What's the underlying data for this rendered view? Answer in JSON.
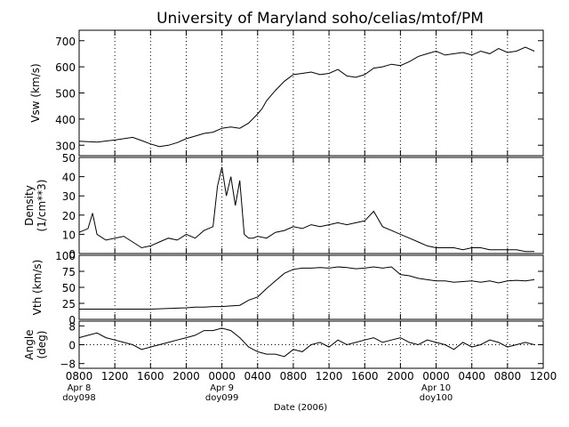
{
  "chart_data": {
    "type": "line",
    "title": "University of Maryland  soho/celias/mtof/PM",
    "xlabel": "Date (2006)",
    "x_ticks": [
      "0800",
      "1200",
      "1600",
      "2000",
      "0000",
      "0400",
      "0800",
      "1200",
      "1600",
      "2000",
      "0000",
      "0400",
      "0800",
      "1200"
    ],
    "x_range_hours": [
      0,
      52
    ],
    "date_annotations": [
      {
        "hour": 0,
        "date": "Apr 8",
        "doy": "doy098"
      },
      {
        "hour": 16,
        "date": "Apr 9",
        "doy": "doy099"
      },
      {
        "hour": 40,
        "date": "Apr 10",
        "doy": "doy100"
      }
    ],
    "grid": "dotted vertical lines every 4 hours",
    "panels": [
      {
        "id": "vsw",
        "ylabel": [
          "Vsw (km/s)"
        ],
        "ylim": [
          260,
          740
        ],
        "yticks": [
          300,
          400,
          500,
          600,
          700
        ],
        "x": [
          0,
          2,
          4,
          6,
          7,
          8,
          9,
          10,
          11,
          12,
          13,
          14,
          15,
          16,
          17,
          18,
          19,
          20,
          20.5,
          21,
          22,
          23,
          24,
          25,
          26,
          27,
          28,
          29,
          30,
          31,
          32,
          33,
          34,
          35,
          36,
          37,
          38,
          39,
          40,
          41,
          42,
          43,
          44,
          45,
          46,
          47,
          48,
          49,
          50,
          51
        ],
        "y": [
          315,
          312,
          320,
          330,
          318,
          305,
          295,
          300,
          310,
          325,
          335,
          345,
          350,
          365,
          370,
          365,
          385,
          420,
          440,
          470,
          510,
          545,
          570,
          575,
          580,
          570,
          575,
          590,
          565,
          560,
          570,
          595,
          600,
          610,
          605,
          620,
          640,
          650,
          660,
          645,
          650,
          655,
          645,
          660,
          650,
          670,
          655,
          660,
          675,
          660
        ]
      },
      {
        "id": "density",
        "ylabel": [
          "Density",
          "(1/cm**3)"
        ],
        "ylim": [
          0,
          50
        ],
        "yticks": [
          0,
          10,
          20,
          30,
          40,
          50
        ],
        "x": [
          0,
          1,
          1.5,
          2,
          3,
          4,
          5,
          6,
          7,
          8,
          9,
          10,
          11,
          12,
          13,
          14,
          15,
          15.5,
          16,
          16.5,
          17,
          17.5,
          18,
          18.5,
          19,
          19.5,
          20,
          21,
          22,
          23,
          24,
          25,
          26,
          27,
          28,
          29,
          30,
          31,
          32,
          33,
          34,
          35,
          36,
          37,
          38,
          39,
          40,
          41,
          42,
          43,
          44,
          45,
          46,
          47,
          48,
          49,
          50,
          51
        ],
        "y": [
          11,
          13,
          21,
          10,
          7,
          8,
          9,
          6,
          3,
          4,
          6,
          8,
          7,
          10,
          8,
          12,
          14,
          35,
          45,
          30,
          40,
          25,
          38,
          10,
          8,
          8,
          9,
          8,
          11,
          12,
          14,
          13,
          15,
          14,
          15,
          16,
          15,
          16,
          17,
          22,
          14,
          12,
          10,
          8,
          6,
          4,
          3,
          3,
          3,
          2,
          3,
          3,
          2,
          2,
          2,
          2,
          1,
          1
        ]
      },
      {
        "id": "vth",
        "ylabel": [
          "Vth (km/s)"
        ],
        "ylim": [
          0,
          100
        ],
        "yticks": [
          0,
          25,
          50,
          75,
          100
        ],
        "yticklabels": [
          "0",
          "25",
          "50",
          "75",
          "100"
        ],
        "x": [
          0,
          2,
          4,
          6,
          8,
          10,
          12,
          13,
          14,
          15,
          16,
          17,
          18,
          19,
          20,
          21,
          22,
          23,
          24,
          25,
          26,
          27,
          28,
          29,
          30,
          31,
          32,
          33,
          34,
          35,
          36,
          37,
          38,
          39,
          40,
          41,
          42,
          43,
          44,
          45,
          46,
          47,
          48,
          49,
          50,
          51
        ],
        "y": [
          16,
          16,
          16,
          16,
          16,
          17,
          18,
          19,
          19,
          20,
          20,
          21,
          22,
          30,
          35,
          48,
          60,
          72,
          78,
          80,
          80,
          81,
          80,
          82,
          81,
          79,
          80,
          82,
          80,
          82,
          70,
          68,
          64,
          62,
          60,
          60,
          58,
          59,
          60,
          58,
          60,
          57,
          60,
          61,
          60,
          62
        ]
      },
      {
        "id": "angle",
        "ylabel": [
          "Angle",
          "(deg)"
        ],
        "ylim": [
          -10,
          10
        ],
        "yticks": [
          -8,
          0,
          8
        ],
        "yticklabels": [
          "−8",
          "0",
          "8"
        ],
        "zero_line": "dotted",
        "x": [
          0,
          1,
          2,
          3,
          4,
          5,
          6,
          7,
          8,
          9,
          10,
          11,
          12,
          13,
          14,
          15,
          16,
          17,
          18,
          19,
          20,
          21,
          22,
          23,
          24,
          25,
          26,
          27,
          28,
          29,
          30,
          31,
          32,
          33,
          34,
          35,
          36,
          37,
          38,
          39,
          40,
          41,
          42,
          43,
          44,
          45,
          46,
          47,
          48,
          49,
          50,
          51
        ],
        "y": [
          3,
          4,
          5,
          3,
          2,
          1,
          0,
          -2,
          -1,
          0,
          1,
          2,
          3,
          4,
          6,
          6,
          7,
          6,
          3,
          -1,
          -3,
          -4,
          -4,
          -5,
          -2,
          -3,
          0,
          1,
          -1,
          2,
          0,
          1,
          2,
          3,
          1,
          2,
          3,
          1,
          0,
          2,
          1,
          0,
          -2,
          1,
          -1,
          0,
          2,
          1,
          -1,
          0,
          1,
          0
        ]
      }
    ]
  }
}
